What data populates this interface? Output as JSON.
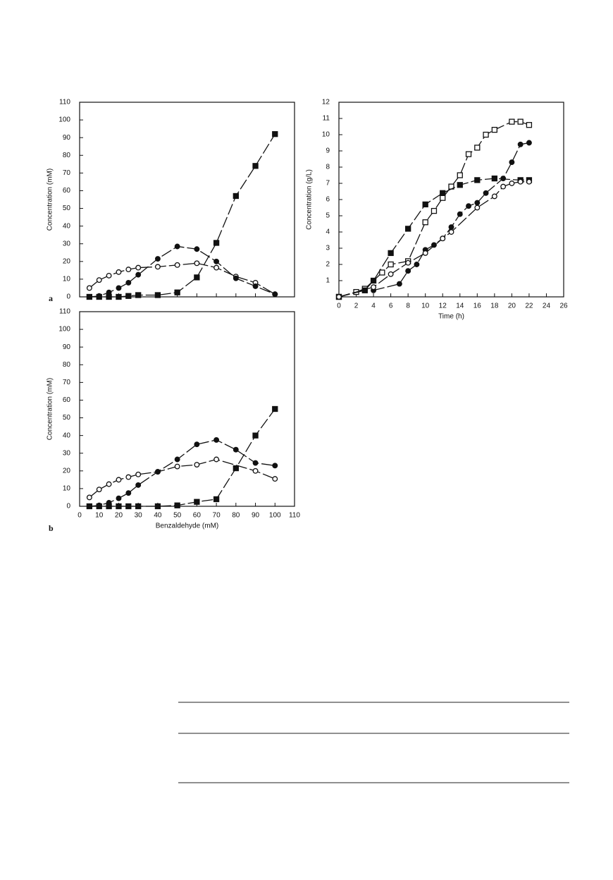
{
  "chart_data": [
    {
      "type": "scatter",
      "panel_label": "a",
      "y_label": "Concentration (mM)",
      "xlim": [
        0,
        110
      ],
      "xticks": [
        0,
        10,
        20,
        30,
        40,
        50,
        60,
        70,
        80,
        90,
        100,
        110
      ],
      "xtick_labels": false,
      "ylim": [
        0,
        110
      ],
      "yticks": [
        0,
        10,
        20,
        30,
        40,
        50,
        60,
        70,
        80,
        90,
        100,
        110
      ],
      "grid": false,
      "series": [
        {
          "marker": "open-circle",
          "color": "#111",
          "x": [
            5,
            10,
            15,
            20,
            25,
            30,
            40,
            50,
            60,
            70,
            80,
            90,
            100
          ],
          "values": [
            5,
            9.5,
            12,
            14,
            15.5,
            16.5,
            17,
            18,
            19,
            16.5,
            11.5,
            8,
            1.5
          ]
        },
        {
          "marker": "filled-circle",
          "color": "#111",
          "x": [
            5,
            10,
            15,
            20,
            25,
            30,
            40,
            50,
            60,
            70,
            80,
            90,
            100
          ],
          "values": [
            0,
            0.5,
            2.5,
            5,
            8,
            12.5,
            21.5,
            28.5,
            27,
            20,
            10.5,
            6,
            1.5
          ]
        },
        {
          "marker": "filled-square",
          "color": "#111",
          "x": [
            5,
            10,
            15,
            20,
            25,
            30,
            40,
            50,
            60,
            70,
            80,
            90,
            100
          ],
          "values": [
            0,
            0,
            0,
            0,
            0.5,
            1,
            1,
            2.5,
            11,
            30.5,
            57,
            74,
            92
          ]
        }
      ]
    },
    {
      "type": "scatter",
      "panel_label": "b",
      "x_label": "Benzaldehyde (mM)",
      "y_label": "Concentration (mM)",
      "xlim": [
        0,
        110
      ],
      "xticks": [
        0,
        10,
        20,
        30,
        40,
        50,
        60,
        70,
        80,
        90,
        100,
        110
      ],
      "xtick_labels": true,
      "ylim": [
        0,
        110
      ],
      "yticks": [
        0,
        10,
        20,
        30,
        40,
        50,
        60,
        70,
        80,
        90,
        100,
        110
      ],
      "grid": false,
      "series": [
        {
          "marker": "open-circle",
          "color": "#111",
          "x": [
            5,
            10,
            15,
            20,
            25,
            30,
            40,
            50,
            60,
            70,
            90,
            100
          ],
          "values": [
            5,
            9.5,
            12.5,
            15,
            16.5,
            18,
            19.5,
            22.5,
            23.5,
            26.5,
            20,
            15.5
          ]
        },
        {
          "marker": "filled-circle",
          "color": "#111",
          "x": [
            5,
            10,
            15,
            20,
            25,
            30,
            40,
            50,
            60,
            70,
            80,
            90,
            100
          ],
          "values": [
            0,
            0.5,
            2,
            4.5,
            7.5,
            12,
            19.5,
            26.5,
            35,
            37.5,
            32,
            24.5,
            23
          ]
        },
        {
          "marker": "filled-square",
          "color": "#111",
          "x": [
            5,
            10,
            15,
            20,
            25,
            30,
            40,
            50,
            60,
            70,
            80,
            90,
            100
          ],
          "values": [
            0,
            0,
            0,
            0,
            0,
            0,
            0,
            0.5,
            2.5,
            4,
            21.5,
            40,
            55
          ]
        }
      ]
    },
    {
      "type": "scatter",
      "x_label": "Time (h)",
      "y_label": "Concentration (g/L)",
      "xlim": [
        0,
        26
      ],
      "xticks": [
        0,
        2,
        4,
        6,
        8,
        10,
        12,
        14,
        16,
        18,
        20,
        22,
        24,
        26
      ],
      "xtick_labels": true,
      "ylim": [
        0,
        12
      ],
      "yticks": [
        1,
        2,
        3,
        4,
        5,
        6,
        7,
        8,
        9,
        10,
        11,
        12
      ],
      "grid": false,
      "series": [
        {
          "marker": "open-square",
          "color": "#111",
          "x": [
            0,
            2,
            3,
            5,
            6,
            8,
            10,
            11,
            12,
            13,
            14,
            15,
            16,
            17,
            18,
            20,
            21,
            22
          ],
          "values": [
            0,
            0.3,
            0.5,
            1.5,
            2,
            2.2,
            4.6,
            5.3,
            6.1,
            6.8,
            7.5,
            8.8,
            9.2,
            10,
            10.3,
            10.8,
            10.8,
            10.6
          ]
        },
        {
          "marker": "filled-square",
          "color": "#111",
          "x": [
            0,
            3,
            4,
            6,
            8,
            10,
            12,
            14,
            16,
            18,
            21,
            22
          ],
          "values": [
            0,
            0.4,
            1,
            2.7,
            4.2,
            5.7,
            6.4,
            6.9,
            7.2,
            7.3,
            7.2,
            7.2
          ]
        },
        {
          "marker": "filled-circle",
          "color": "#111",
          "x": [
            4,
            7,
            8,
            9,
            10,
            11,
            12,
            13,
            14,
            15,
            16,
            17,
            19,
            20,
            21,
            22
          ],
          "values": [
            0.4,
            0.8,
            1.6,
            2,
            2.9,
            3.2,
            3.6,
            4.3,
            5.1,
            5.6,
            5.8,
            6.4,
            7.3,
            8.3,
            9.4,
            9.5
          ]
        },
        {
          "marker": "open-circle",
          "color": "#111",
          "x": [
            0,
            4,
            6,
            8,
            10,
            12,
            13,
            16,
            18,
            19,
            20,
            21,
            22
          ],
          "values": [
            0,
            0.6,
            1.4,
            2.1,
            2.7,
            3.6,
            4,
            5.5,
            6.2,
            6.8,
            7,
            7.1,
            7.1
          ]
        }
      ]
    }
  ]
}
